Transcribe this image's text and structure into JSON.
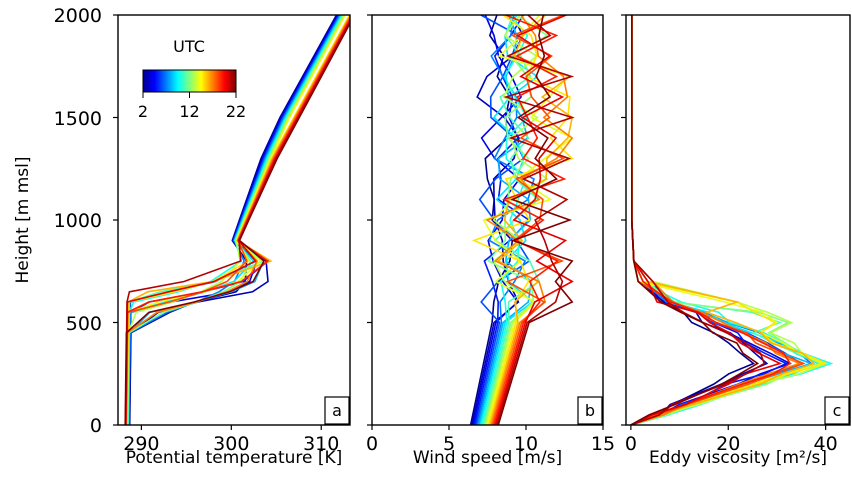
{
  "chart_data": {
    "shared": {
      "y_label": "Height [m msl]",
      "ylim": [
        0,
        2000
      ],
      "y_ticks": [
        "0",
        "500",
        "1000",
        "1500",
        "2000"
      ],
      "colorbar": {
        "title": "UTC",
        "ticks": [
          "2",
          "12",
          "22"
        ],
        "range": [
          2,
          22
        ]
      },
      "hours": [
        2,
        3,
        4,
        5,
        6,
        7,
        8,
        9,
        10,
        11,
        12,
        13,
        14,
        15,
        16,
        17,
        18,
        19,
        20,
        21,
        22
      ]
    },
    "panels": [
      {
        "id": "a",
        "type": "line",
        "letter": "a",
        "xlabel": "Potential temperature [K]",
        "xlim": [
          287.4,
          313.2
        ],
        "x_ticks": [
          290,
          300,
          310
        ],
        "x_tick_labels": [
          "290",
          "300",
          "310"
        ],
        "heights": [
          0,
          200,
          450,
          550,
          600,
          650,
          700,
          800,
          900,
          1000,
          1100,
          1200,
          1300,
          1500,
          1700,
          2000
        ]
      },
      {
        "id": "b",
        "type": "line",
        "letter": "b",
        "xlabel": "Wind speed [m/s]",
        "xlim": [
          0,
          15
        ],
        "x_ticks": [
          0,
          5,
          10,
          15
        ],
        "x_tick_labels": [
          "0",
          "5",
          "10",
          "15"
        ],
        "heights": [
          0,
          100,
          200,
          300,
          400,
          500,
          600,
          700,
          800,
          900,
          1000,
          1100,
          1200,
          1300,
          1400,
          1500,
          1600,
          1700,
          1800,
          1900,
          2000
        ]
      },
      {
        "id": "c",
        "type": "line",
        "letter": "c",
        "xlabel": "Eddy viscosity [m²/s]",
        "xlim": [
          -1,
          45
        ],
        "x_ticks": [
          0,
          20,
          40
        ],
        "x_tick_labels": [
          "0",
          "20",
          "40"
        ],
        "heights": [
          0,
          50,
          100,
          200,
          250,
          300,
          350,
          400,
          450,
          500,
          550,
          600,
          700,
          800,
          1000,
          1500,
          2000
        ]
      }
    ]
  }
}
